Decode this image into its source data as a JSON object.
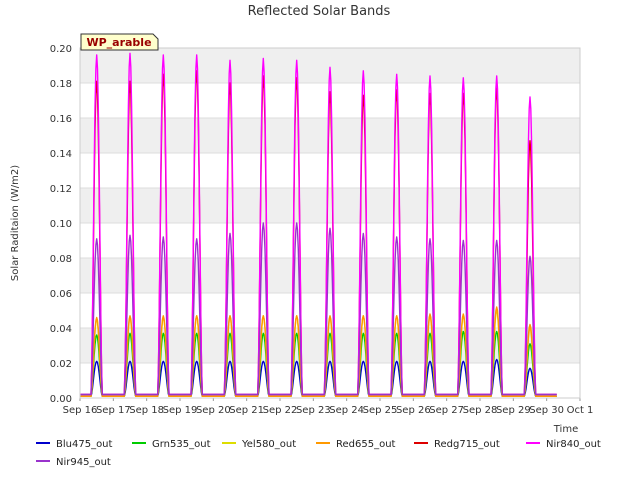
{
  "chart_data": {
    "type": "line",
    "title": "Reflected Solar Bands",
    "xlabel": "Time",
    "ylabel": "Solar Raditaion (W/m2)",
    "badge": "WP_arable",
    "ylim": [
      0.0,
      0.2
    ],
    "yticks": [
      "0.00",
      "0.02",
      "0.04",
      "0.06",
      "0.08",
      "0.10",
      "0.12",
      "0.14",
      "0.16",
      "0.18",
      "0.20"
    ],
    "xlim": [
      "Sep 16",
      "Oct 1"
    ],
    "xticks": [
      "Sep 16",
      "Sep 17",
      "Sep 18",
      "Sep 19",
      "Sep 20",
      "Sep 21",
      "Sep 22",
      "Sep 23",
      "Sep 24",
      "Sep 25",
      "Sep 26",
      "Sep 27",
      "Sep 28",
      "Sep 29",
      "Sep 30",
      "Oct 1"
    ],
    "grid": "horizontal bands",
    "legend_position": "bottom",
    "data_range": [
      "Sep 16",
      "Sep 30"
    ],
    "day_peak_hour": 12,
    "peak_dates": [
      "Sep 16",
      "Sep 17",
      "Sep 18",
      "Sep 19",
      "Sep 20",
      "Sep 21",
      "Sep 22",
      "Sep 23",
      "Sep 24",
      "Sep 25",
      "Sep 26",
      "Sep 27",
      "Sep 28",
      "Sep 29"
    ],
    "series": [
      {
        "name": "Blu475_out",
        "color": "#0000cc",
        "night": 0.001,
        "peaks": [
          0.021,
          0.021,
          0.021,
          0.021,
          0.021,
          0.021,
          0.021,
          0.021,
          0.021,
          0.021,
          0.021,
          0.021,
          0.022,
          0.017
        ]
      },
      {
        "name": "Grn535_out",
        "color": "#00cc00",
        "night": 0.001,
        "peaks": [
          0.036,
          0.037,
          0.037,
          0.037,
          0.037,
          0.037,
          0.037,
          0.037,
          0.037,
          0.037,
          0.037,
          0.038,
          0.038,
          0.031
        ]
      },
      {
        "name": "Yel580_out",
        "color": "#dddd00",
        "night": 0.001,
        "peaks": [
          0.045,
          0.046,
          0.046,
          0.047,
          0.047,
          0.047,
          0.047,
          0.046,
          0.047,
          0.047,
          0.047,
          0.047,
          0.05,
          0.04
        ]
      },
      {
        "name": "Red655_out",
        "color": "#ff9900",
        "night": 0.001,
        "peaks": [
          0.046,
          0.047,
          0.047,
          0.047,
          0.047,
          0.047,
          0.047,
          0.047,
          0.047,
          0.047,
          0.048,
          0.048,
          0.052,
          0.042
        ]
      },
      {
        "name": "Redg715_out",
        "color": "#dd0000",
        "night": 0.002,
        "peaks": [
          0.181,
          0.181,
          0.185,
          0.187,
          0.18,
          0.184,
          0.183,
          0.175,
          0.173,
          0.176,
          0.174,
          0.174,
          0.177,
          0.147
        ]
      },
      {
        "name": "Nir840_out",
        "color": "#ff00ff",
        "night": 0.002,
        "peaks": [
          0.196,
          0.197,
          0.196,
          0.196,
          0.193,
          0.194,
          0.193,
          0.189,
          0.187,
          0.185,
          0.184,
          0.183,
          0.184,
          0.172
        ]
      },
      {
        "name": "Nir945_out",
        "color": "#9933cc",
        "night": 0.002,
        "peaks": [
          0.091,
          0.093,
          0.092,
          0.091,
          0.094,
          0.1,
          0.1,
          0.097,
          0.094,
          0.092,
          0.091,
          0.09,
          0.09,
          0.081
        ]
      }
    ]
  }
}
